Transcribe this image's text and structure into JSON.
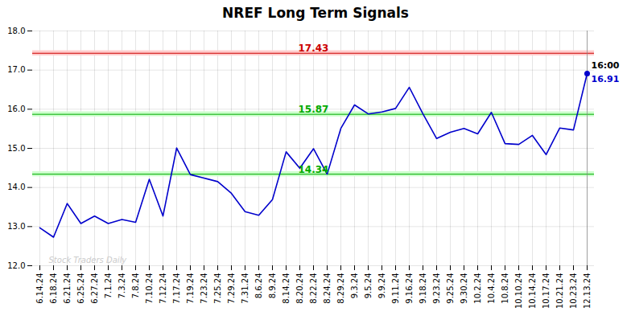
{
  "chart_data": {
    "type": "line",
    "title": "NREF Long Term Signals",
    "categories": [
      "6.14.24",
      "6.18.24",
      "6.21.24",
      "6.25.24",
      "6.27.24",
      "7.1.24",
      "7.3.24",
      "7.8.24",
      "7.10.24",
      "7.12.24",
      "7.17.24",
      "7.19.24",
      "7.23.24",
      "7.25.24",
      "7.29.24",
      "7.31.24",
      "8.6.24",
      "8.9.24",
      "8.14.24",
      "8.20.24",
      "8.22.24",
      "8.24.24",
      "8.29.24",
      "9.3.24",
      "9.5.24",
      "9.9.24",
      "9.11.24",
      "9.16.24",
      "9.18.24",
      "9.23.24",
      "9.25.24",
      "9.30.24",
      "10.2.24",
      "10.4.24",
      "10.8.24",
      "10.10.24",
      "10.14.24",
      "10.17.24",
      "10.21.24",
      "10.23.24",
      "12.13.24"
    ],
    "values": [
      12.97,
      12.73,
      13.59,
      13.08,
      13.27,
      13.08,
      13.18,
      13.11,
      14.21,
      13.27,
      15.01,
      14.33,
      14.24,
      14.15,
      13.85,
      13.38,
      13.29,
      13.69,
      14.91,
      14.49,
      14.99,
      14.34,
      15.51,
      16.11,
      15.88,
      15.93,
      16.02,
      16.56,
      15.88,
      15.25,
      15.41,
      15.51,
      15.37,
      15.92,
      15.12,
      15.1,
      15.33,
      14.84,
      15.52,
      15.47,
      16.91
    ],
    "color": "#0000cc",
    "ylim": [
      12,
      18
    ],
    "yticks": [
      12,
      13,
      14,
      15,
      16,
      17,
      18
    ],
    "grid": true,
    "reference_lines": [
      {
        "y": 17.43,
        "label": "17.43",
        "color": "#cc0000",
        "band_color": "#ffcccc",
        "band_half_width": 0.065
      },
      {
        "y": 15.87,
        "label": "15.87",
        "color": "#00aa00",
        "band_color": "#ccffcc",
        "band_half_width": 0.065
      },
      {
        "y": 14.34,
        "label": "14.34",
        "color": "#00aa00",
        "band_color": "#ccffcc",
        "band_half_width": 0.065
      }
    ],
    "last_point": {
      "x": "12.13.24",
      "y": 16.91,
      "label": "16.91",
      "time_label": "16:00"
    },
    "watermark": "Stock Traders Daily"
  }
}
